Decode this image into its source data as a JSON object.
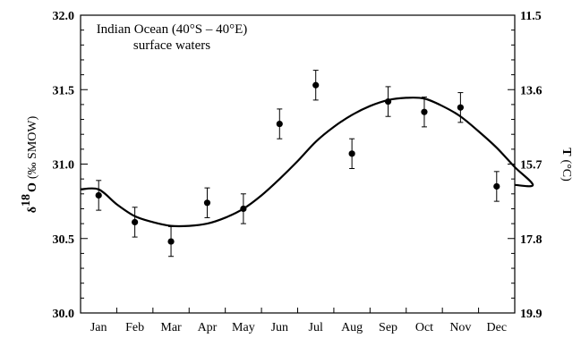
{
  "chart_data": {
    "type": "scatter",
    "title": "Indian Ocean (40°S – 40°E)",
    "subtitle": "surface waters",
    "categories": [
      "Jan",
      "Feb",
      "Mar",
      "Apr",
      "May",
      "Jun",
      "Jul",
      "Aug",
      "Sep",
      "Oct",
      "Nov",
      "Dec"
    ],
    "ylabel_left": {
      "symbol": "δ",
      "sup": "18",
      "main": "O",
      "unit": "(‰ SMOW)"
    },
    "ylabel_right": {
      "main": "T",
      "unit": "(°C)"
    },
    "ylim": [
      30.0,
      32.0
    ],
    "y_ticks": [
      "30.0",
      "30.5",
      "31.0",
      "31.5",
      "32.0"
    ],
    "right_ticks": [
      "11.5",
      "13.6",
      "15.7",
      "17.8",
      "19.9"
    ],
    "right_lim": [
      11.5,
      19.9
    ],
    "grid": false,
    "series": [
      {
        "kind": "points_with_error_bars",
        "values": [
          30.79,
          30.61,
          30.48,
          30.74,
          30.7,
          31.27,
          31.53,
          31.07,
          31.42,
          31.35,
          31.38,
          30.85
        ],
        "errors": [
          0.1,
          0.1,
          0.1,
          0.1,
          0.1,
          0.1,
          0.1,
          0.1,
          0.1,
          0.1,
          0.1,
          0.1
        ]
      },
      {
        "kind": "fitted_curve",
        "x": [
          0.5,
          1.0,
          1.5,
          2.0,
          2.5,
          3.0,
          3.5,
          4.0,
          4.5,
          5.0,
          5.5,
          6.0,
          6.5,
          7.0,
          7.5,
          8.0,
          8.5,
          9.0,
          9.5,
          10.0,
          10.5,
          11.0,
          11.5,
          12.0,
          12.5
        ],
        "values": [
          30.83,
          30.73,
          30.65,
          30.61,
          30.585,
          30.585,
          30.6,
          30.64,
          30.7,
          30.79,
          30.9,
          31.02,
          31.15,
          31.25,
          31.33,
          31.39,
          31.43,
          31.445,
          31.44,
          31.39,
          31.32,
          31.22,
          31.11,
          30.98,
          30.86
        ]
      }
    ]
  }
}
